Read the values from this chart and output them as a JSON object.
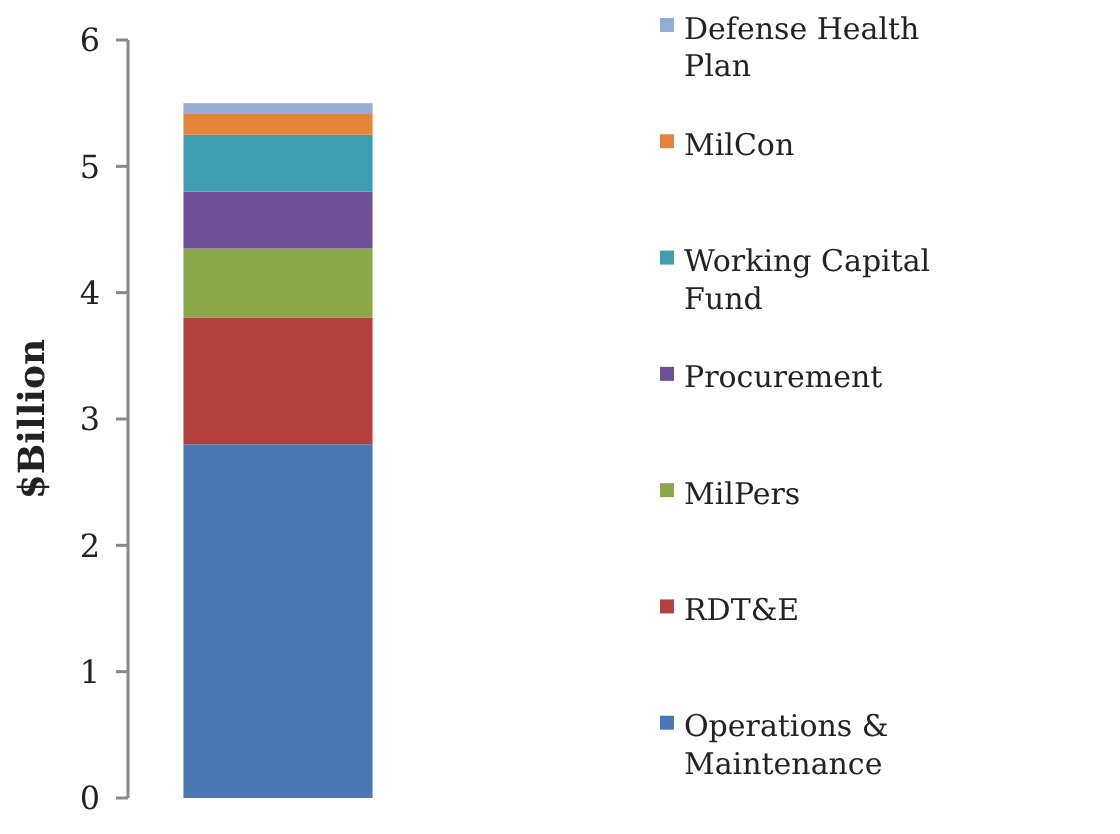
{
  "chart_data": {
    "type": "bar",
    "ylabel": "$Billion",
    "categories": [
      null
    ],
    "stacked": true,
    "ylim": [
      0,
      6
    ],
    "yticks": [
      0,
      1,
      2,
      3,
      4,
      5,
      6
    ],
    "grid": false,
    "legend": "right",
    "series": [
      {
        "name": "Operations & Maintenance",
        "color": "#4a78b5",
        "values": [
          2.8
        ]
      },
      {
        "name": "RDT&E",
        "color": "#b5413f",
        "values": [
          1.0
        ]
      },
      {
        "name": "MilPers",
        "color": "#8aa84a",
        "values": [
          0.55
        ]
      },
      {
        "name": "Procurement",
        "color": "#6e5096",
        "values": [
          0.45
        ]
      },
      {
        "name": "Working Capital Fund",
        "color": "#3f9db2",
        "values": [
          0.45
        ]
      },
      {
        "name": "MilCon",
        "color": "#e4843a",
        "values": [
          0.17
        ]
      },
      {
        "name": "Defense Health Plan",
        "color": "#94acd6",
        "values": [
          0.08
        ]
      }
    ]
  }
}
